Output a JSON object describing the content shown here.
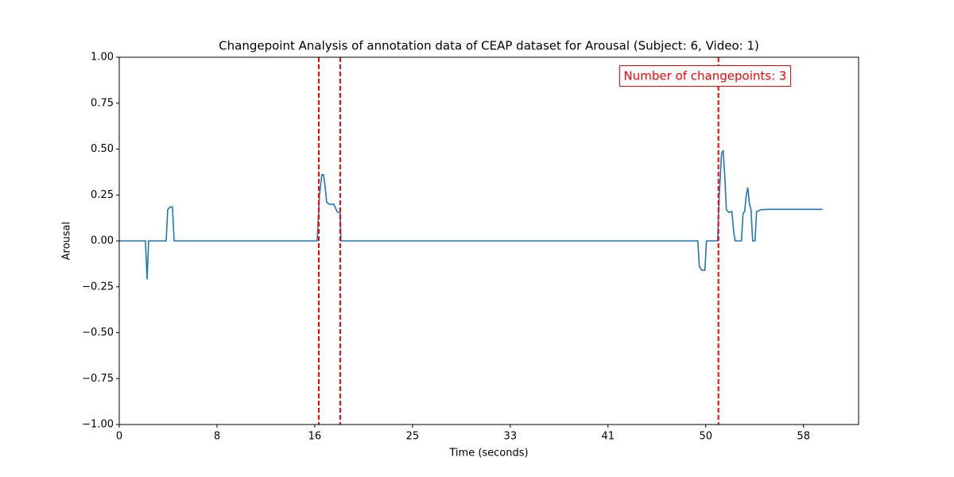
{
  "chart_data": {
    "type": "line",
    "title": "Changepoint Analysis of annotation data of CEAP dataset for Arousal (Subject: 6, Video: 1)",
    "x_label": "Time (seconds)",
    "y_label": "Arousal",
    "xlim": [
      0,
      62.4
    ],
    "ylim": [
      -1,
      1
    ],
    "xticks": [
      0,
      {
        "value": 8.25,
        "label": "8"
      },
      {
        "value": 16.5,
        "label": "16"
      },
      {
        "value": 24.75,
        "label": "25"
      },
      33,
      {
        "value": 41.25,
        "label": "41"
      },
      {
        "value": 49.5,
        "label": "50"
      },
      {
        "value": 57.75,
        "label": "58"
      }
    ],
    "yticks": [
      {
        "value": -1,
        "label": "−1.00"
      },
      {
        "value": -0.75,
        "label": "−0.75"
      },
      {
        "value": -0.5,
        "label": "−0.50"
      },
      {
        "value": -0.25,
        "label": "−0.25"
      },
      {
        "value": 0,
        "label": "0.00"
      },
      {
        "value": 0.25,
        "label": "0.25"
      },
      {
        "value": 0.5,
        "label": "0.50"
      },
      {
        "value": 0.75,
        "label": "0.75"
      },
      {
        "value": 1,
        "label": "1.00"
      }
    ],
    "x": [
      0,
      2.21,
      2.35,
      2.48,
      3.96,
      4.09,
      4.29,
      4.49,
      4.63,
      16.7,
      16.9,
      17.1,
      17.24,
      17.37,
      17.51,
      17.71,
      18.11,
      18.38,
      18.65,
      18.71,
      48.83,
      48.96,
      49.16,
      49.43,
      49.56,
      50.5,
      50.64,
      50.84,
      50.97,
      51.11,
      51.24,
      51.44,
      51.71,
      51.84,
      51.98,
      52.51,
      52.65,
      52.78,
      52.92,
      53.05,
      53.19,
      53.32,
      53.46,
      53.66,
      53.79,
      54.19,
      54.99,
      59.36
    ],
    "series": [
      {
        "color": "#1f77b4",
        "values": [
          0,
          0,
          -0.21,
          0,
          0,
          0.17,
          0.185,
          0.185,
          0,
          0,
          0.25,
          0.36,
          0.36,
          0.3,
          0.21,
          0.2,
          0.2,
          0.16,
          0.15,
          0,
          0,
          -0.14,
          -0.16,
          -0.16,
          0,
          0,
          0.25,
          0.48,
          0.49,
          0.35,
          0.17,
          0.155,
          0.16,
          0.06,
          0,
          0,
          0.15,
          0.16,
          0.25,
          0.29,
          0.2,
          0.17,
          0,
          0,
          0.16,
          0.17,
          0.172,
          0.172
        ]
      }
    ],
    "changepoints": [
      16.84,
      18.65,
      50.57
    ],
    "changepoint_color": "#ff0000",
    "annotation": "Number of changepoints: 3"
  }
}
